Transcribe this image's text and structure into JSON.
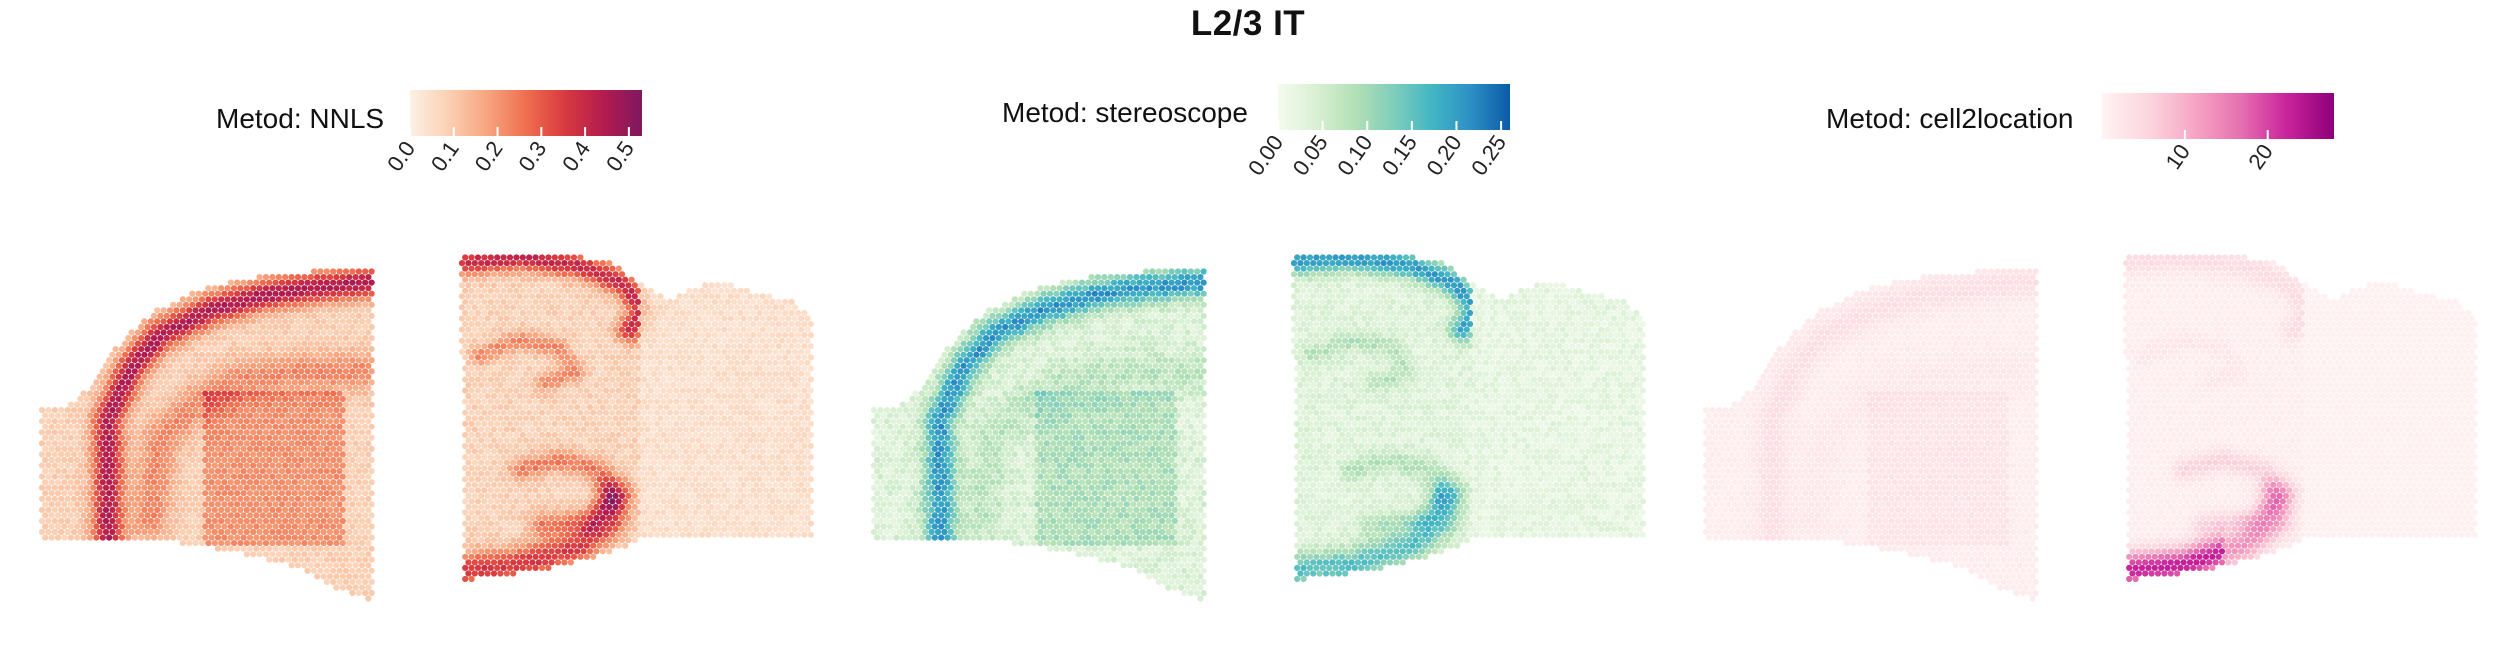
{
  "title": "L2/3 IT",
  "chart_data": [
    {
      "type": "heatmap",
      "title": "L2/3 IT",
      "legend_title": "Metod: NNLS",
      "legend_placement": "top",
      "colorscale": [
        "#fdf0e6",
        "#fbd0b4",
        "#f7a57f",
        "#ef6f4f",
        "#d93a3f",
        "#b31c4f",
        "#7f1860"
      ],
      "range": [
        0,
        0.53
      ],
      "ticks": [
        0.0,
        0.1,
        0.2,
        0.3,
        0.4,
        0.5
      ],
      "tick_labels": [
        "0.0",
        "0.1",
        "0.2",
        "0.3",
        "0.4",
        "0.5"
      ],
      "grid": false,
      "sections": [
        {
          "name": "section-left",
          "spot_value_range": [
            0.02,
            0.45
          ]
        },
        {
          "name": "section-right",
          "spot_value_range": [
            0.02,
            0.4
          ]
        }
      ]
    },
    {
      "type": "heatmap",
      "title": "L2/3 IT",
      "legend_title": "Metod: stereoscope",
      "legend_placement": "top",
      "colorscale": [
        "#f5fbef",
        "#d9f0d3",
        "#b2e0b5",
        "#7fcdbb",
        "#41b6c4",
        "#2c8fc4",
        "#0b5aa8"
      ],
      "range": [
        0,
        0.26
      ],
      "ticks": [
        0.0,
        0.05,
        0.1,
        0.15,
        0.2,
        0.25
      ],
      "tick_labels": [
        "0.00",
        "0.05",
        "0.10",
        "0.15",
        "0.20",
        "0.25"
      ],
      "grid": false,
      "sections": [
        {
          "name": "section-left",
          "spot_value_range": [
            0.01,
            0.2
          ]
        },
        {
          "name": "section-right",
          "spot_value_range": [
            0.01,
            0.18
          ]
        }
      ]
    },
    {
      "type": "heatmap",
      "title": "L2/3 IT",
      "legend_title": "Metod: cell2location",
      "legend_placement": "top",
      "colorscale": [
        "#fff3f3",
        "#fcd6df",
        "#f6a6c4",
        "#e66fb0",
        "#c8239b",
        "#8d0079"
      ],
      "range": [
        0,
        28
      ],
      "ticks": [
        10,
        20
      ],
      "tick_labels": [
        "10",
        "20"
      ],
      "grid": false,
      "sections": [
        {
          "name": "section-left",
          "spot_value_range": [
            0.5,
            7
          ]
        },
        {
          "name": "section-right",
          "spot_value_range": [
            0.5,
            26
          ]
        }
      ]
    }
  ]
}
